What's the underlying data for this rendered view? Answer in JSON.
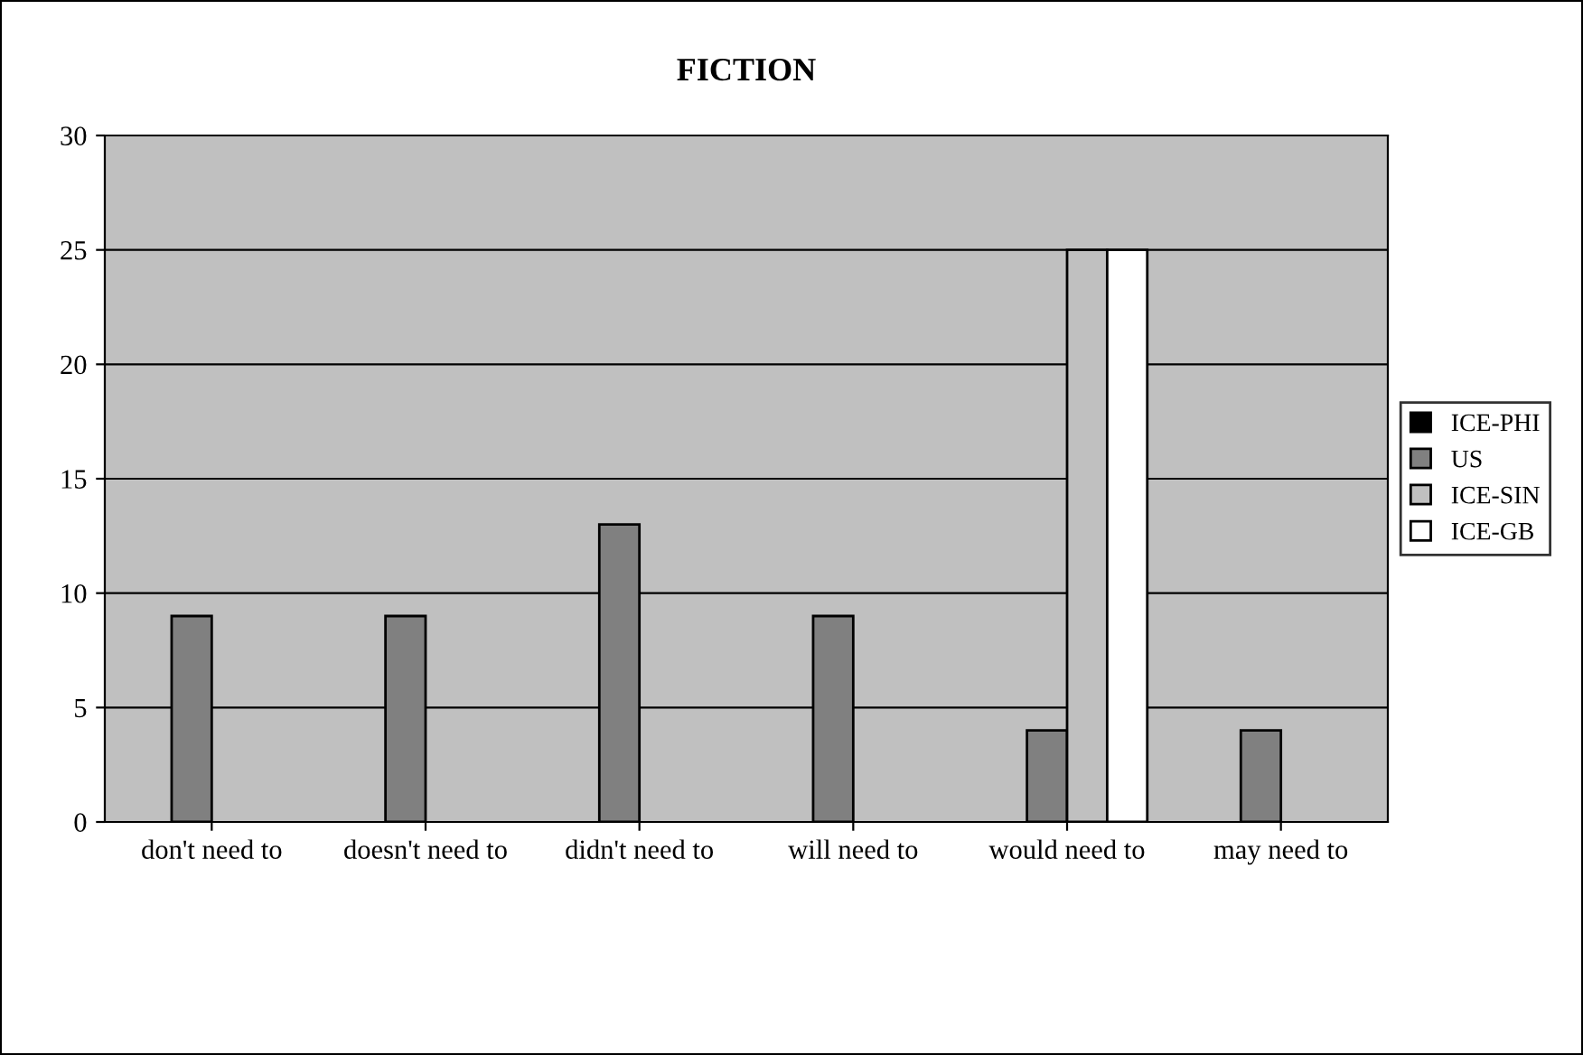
{
  "chart_data": {
    "type": "bar",
    "title": "FICTION",
    "categories": [
      "don't need to",
      "doesn't need to",
      "didn't need to",
      "will need to",
      "would need to",
      "may need to"
    ],
    "series": [
      {
        "name": "ICE-PHI",
        "color": "#000000",
        "values": [
          null,
          null,
          null,
          null,
          null,
          null
        ]
      },
      {
        "name": "US",
        "color": "#808080",
        "values": [
          9,
          9,
          13,
          9,
          4,
          4
        ]
      },
      {
        "name": "ICE-SIN",
        "color": "#c0c0c0",
        "values": [
          null,
          null,
          null,
          null,
          25,
          null
        ]
      },
      {
        "name": "ICE-GB",
        "color": "#ffffff",
        "values": [
          null,
          null,
          null,
          null,
          25,
          null
        ]
      }
    ],
    "ylim": [
      0,
      30
    ],
    "yticks": [
      0,
      5,
      10,
      15,
      20,
      25,
      30
    ],
    "grid": "y",
    "legend": "right"
  }
}
